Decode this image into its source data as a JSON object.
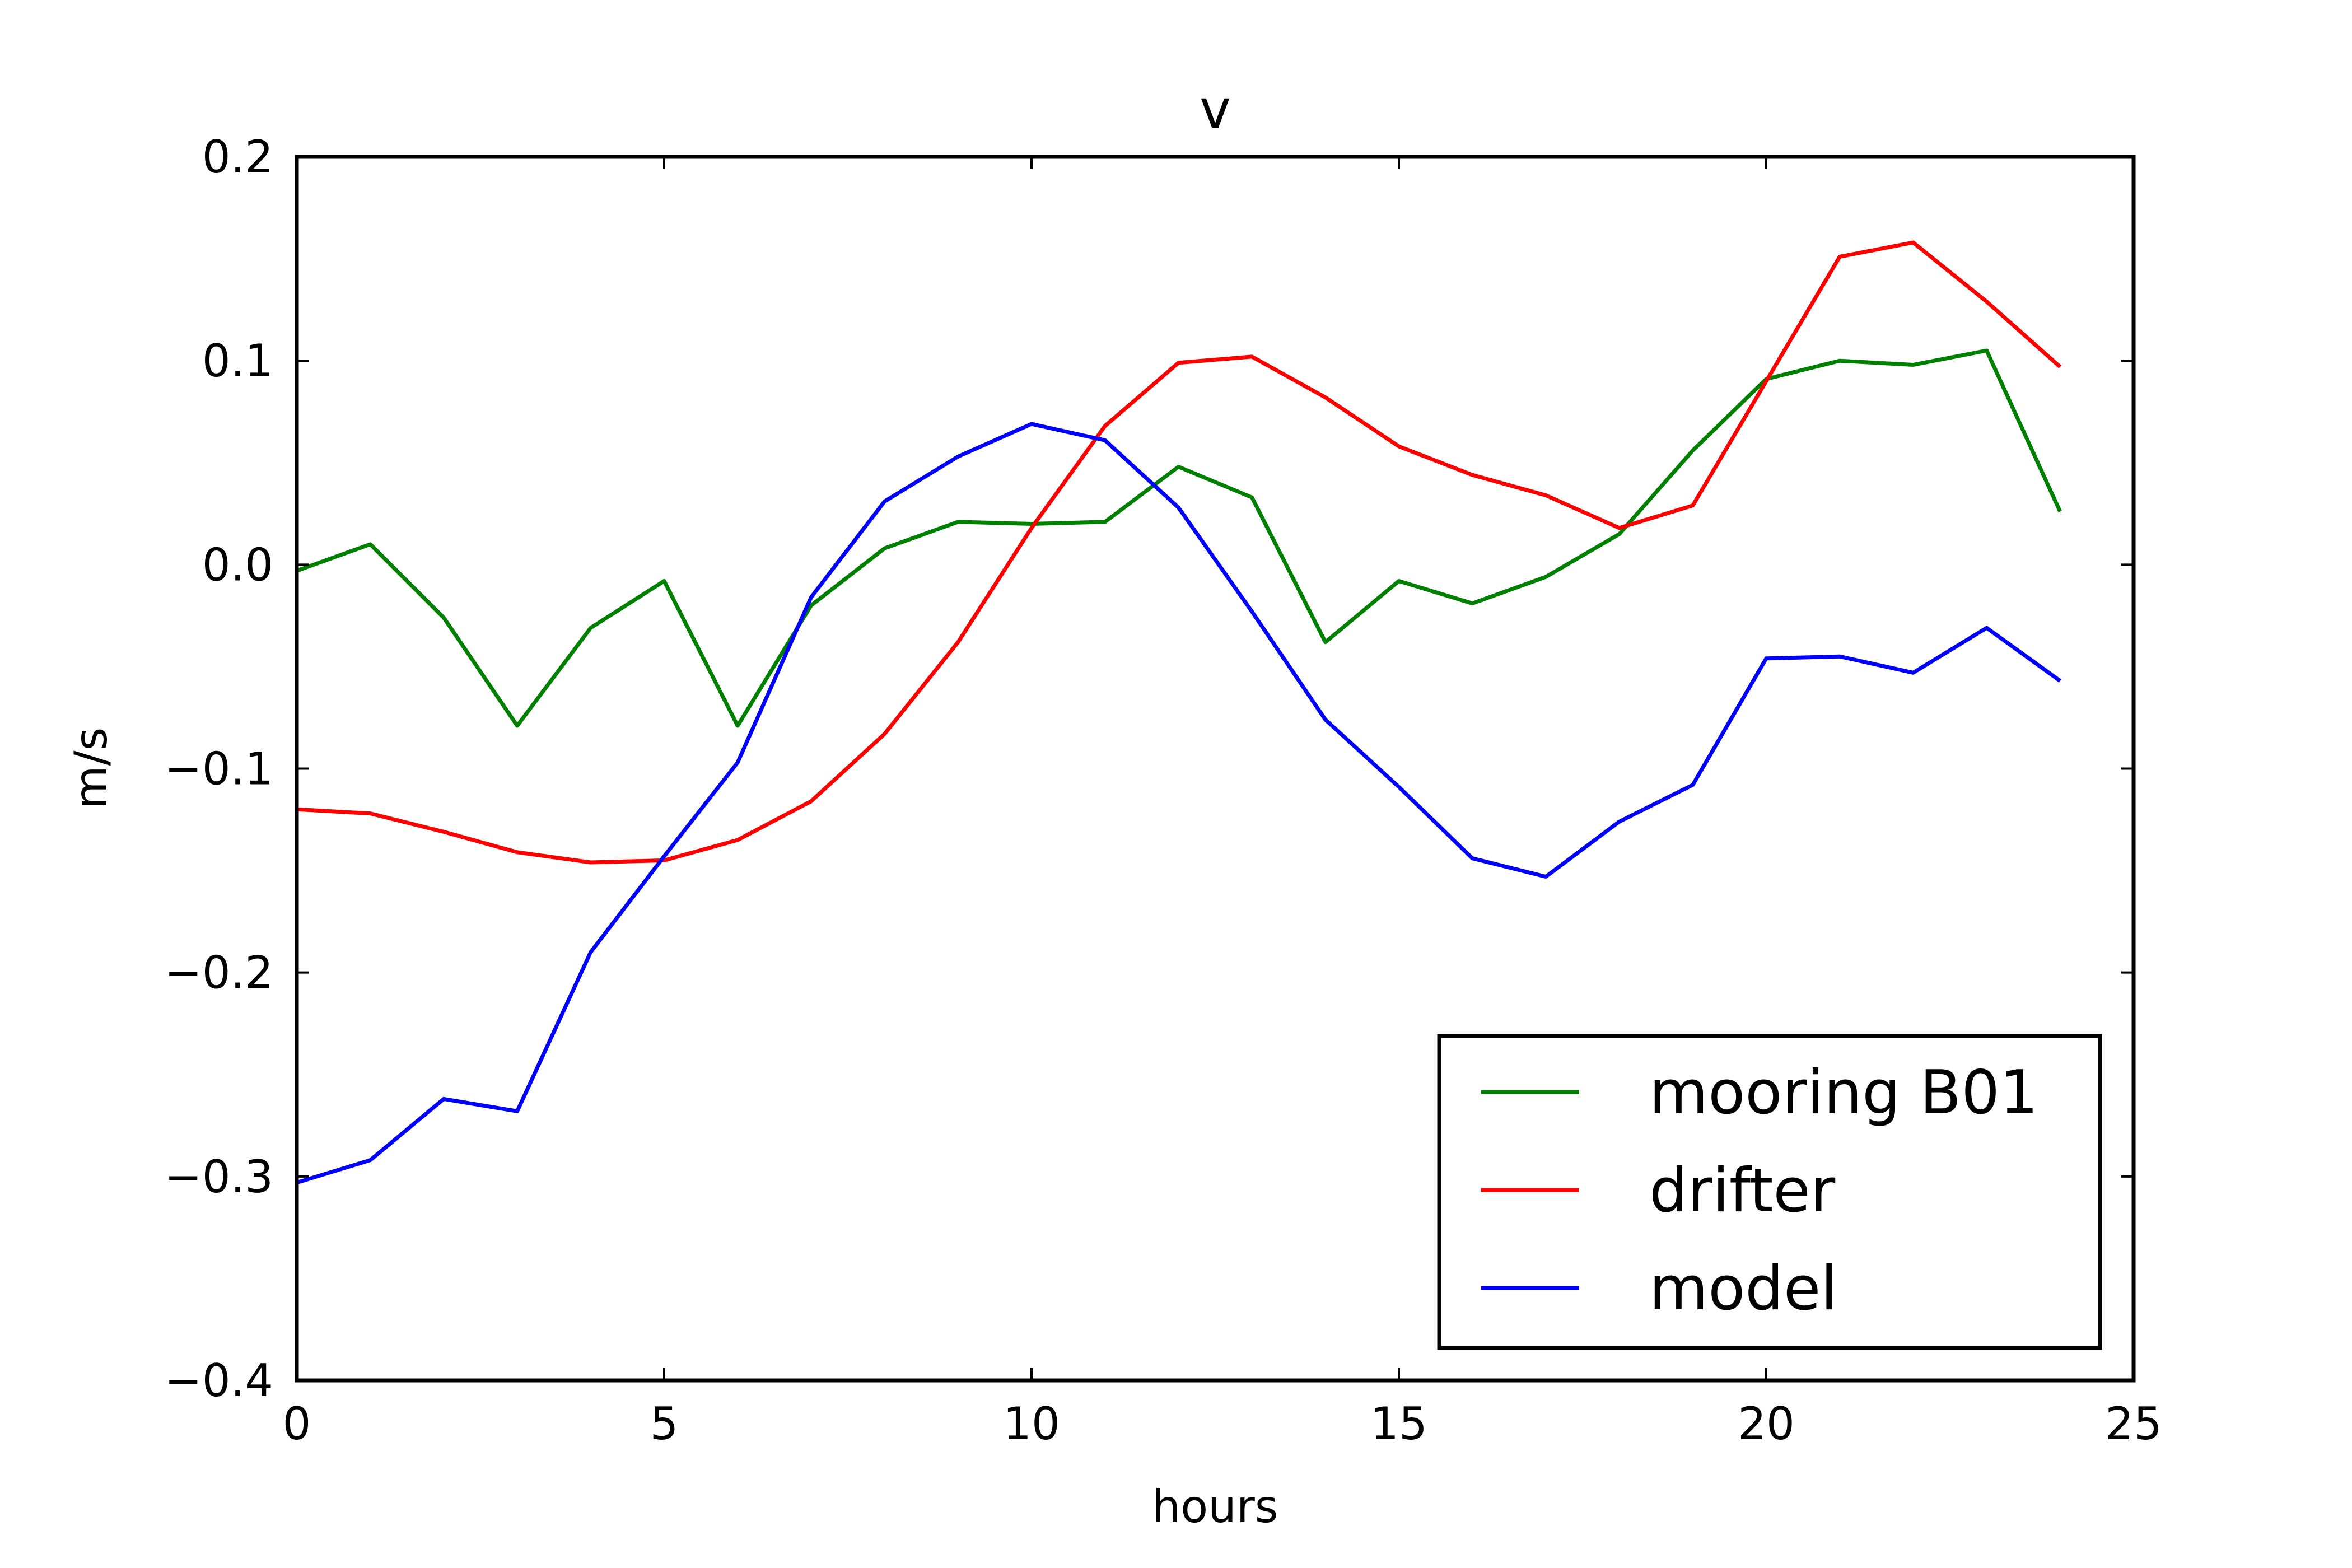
{
  "chart_data": {
    "type": "line",
    "title": "v",
    "xlabel": "hours",
    "ylabel": "m/s",
    "xlim": [
      0,
      25
    ],
    "ylim": [
      -0.4,
      0.2
    ],
    "xticks": [
      0,
      5,
      10,
      15,
      20,
      25
    ],
    "xtick_labels": [
      "0",
      "5",
      "10",
      "15",
      "20",
      "25"
    ],
    "yticks": [
      -0.4,
      -0.3,
      -0.2,
      -0.1,
      0.0,
      0.1,
      0.2
    ],
    "ytick_labels": [
      "−0.4",
      "−0.3",
      "−0.2",
      "−0.1",
      "0.0",
      "0.1",
      "0.2"
    ],
    "grid": false,
    "legend_position": "lower-right",
    "x": [
      0,
      1,
      2,
      3,
      4,
      5,
      6,
      7,
      8,
      9,
      10,
      11,
      12,
      13,
      14,
      15,
      16,
      17,
      18,
      19,
      20,
      21,
      22,
      23,
      24
    ],
    "series": [
      {
        "name": "mooring B01",
        "color": "#008000",
        "values": [
          -0.003,
          0.01,
          -0.026,
          -0.079,
          -0.031,
          -0.008,
          -0.079,
          -0.02,
          0.008,
          0.021,
          0.02,
          0.021,
          0.048,
          0.033,
          -0.038,
          -0.008,
          -0.019,
          -0.006,
          0.015,
          0.056,
          0.091,
          0.1,
          0.098,
          0.105,
          0.026
        ]
      },
      {
        "name": "drifter",
        "color": "#ff0000",
        "values": [
          -0.12,
          -0.122,
          -0.131,
          -0.141,
          -0.146,
          -0.145,
          -0.135,
          -0.116,
          -0.083,
          -0.038,
          0.018,
          0.068,
          0.099,
          0.102,
          0.082,
          0.058,
          0.044,
          0.034,
          0.018,
          0.029,
          0.09,
          0.151,
          0.158,
          0.129,
          0.097
        ]
      },
      {
        "name": "model",
        "color": "#0000ff",
        "values": [
          -0.303,
          -0.292,
          -0.262,
          -0.268,
          -0.19,
          -0.143,
          -0.097,
          -0.016,
          0.031,
          0.053,
          0.069,
          0.061,
          0.028,
          -0.023,
          -0.076,
          -0.109,
          -0.144,
          -0.153,
          -0.126,
          -0.108,
          -0.046,
          -0.045,
          -0.053,
          -0.031,
          -0.057
        ]
      }
    ]
  }
}
